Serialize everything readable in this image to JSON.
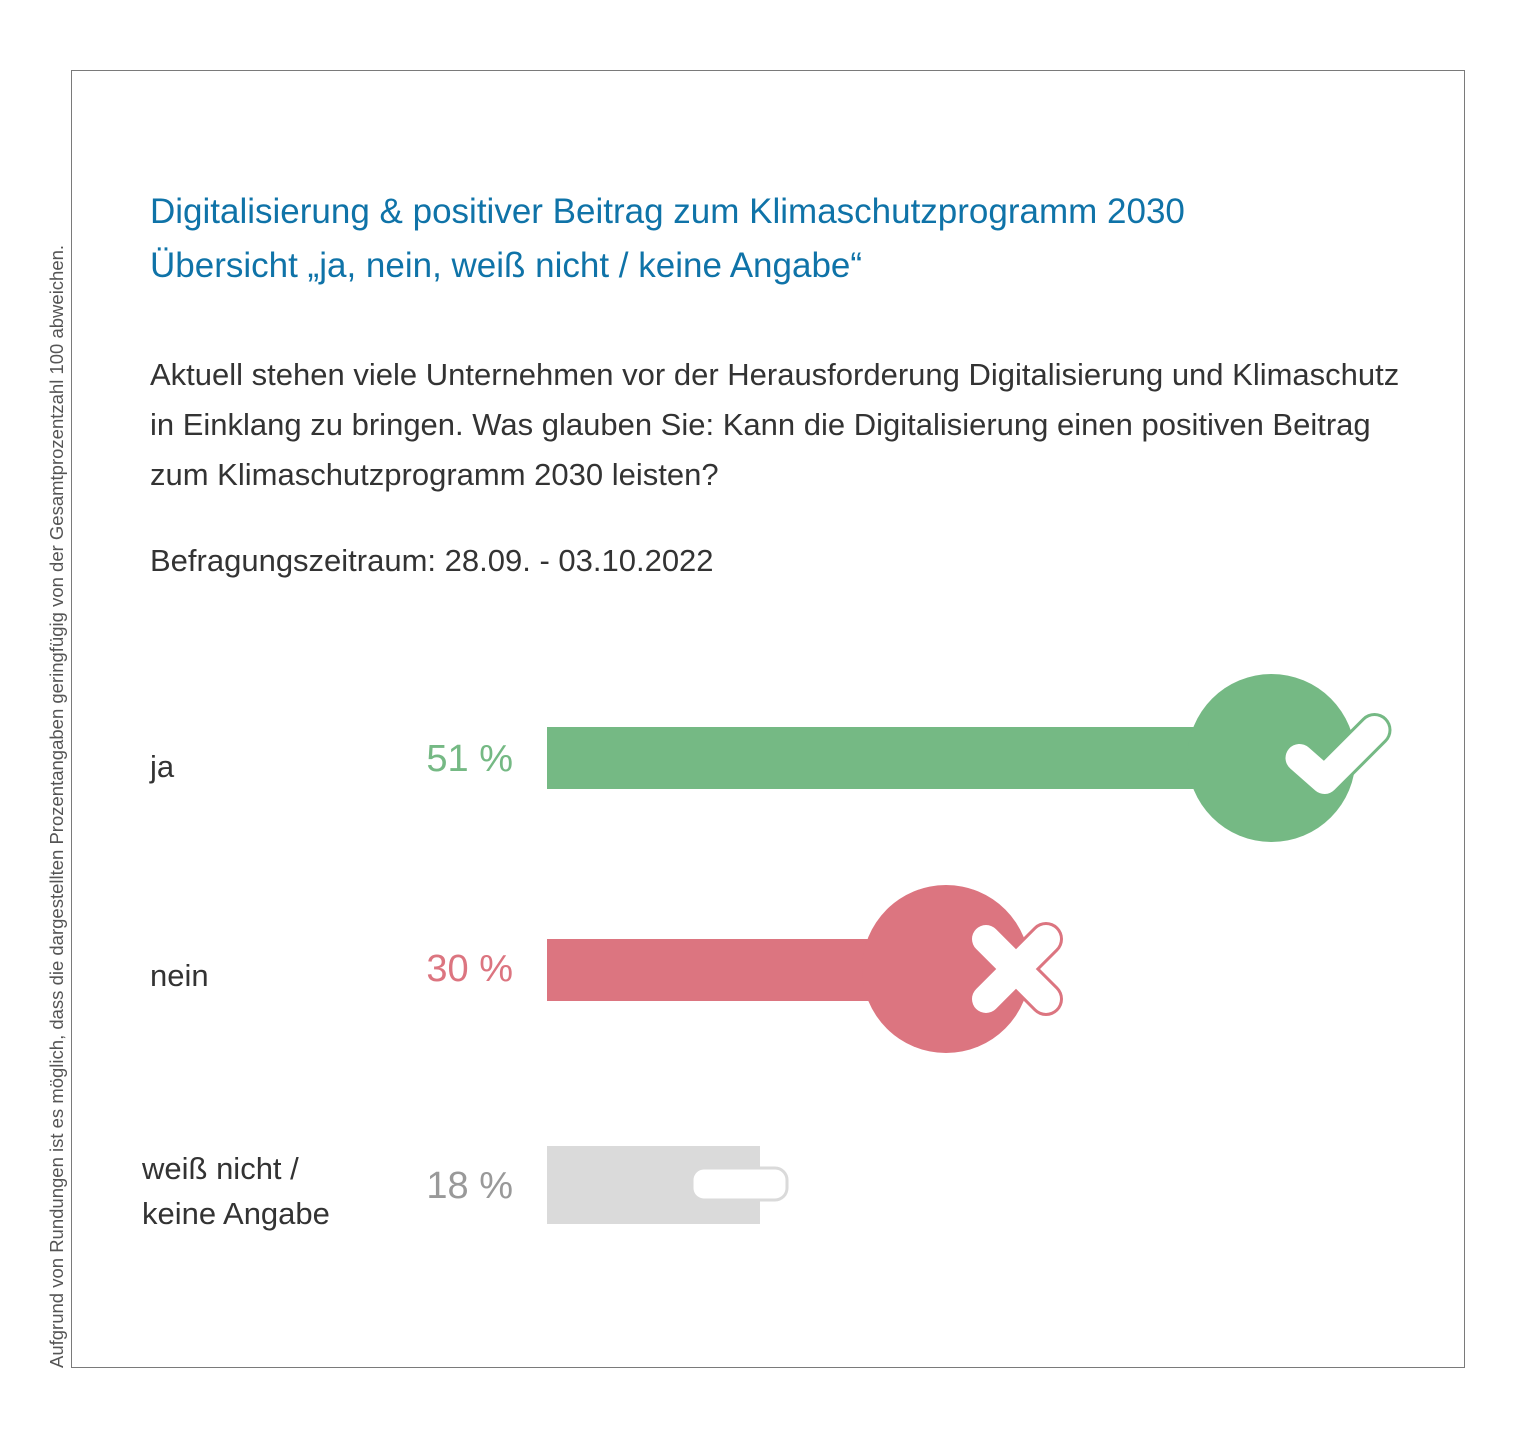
{
  "side_note": "Aufgrund von Rundungen ist es möglich, dass die dargestellten Prozentangaben geringfügig von der Gesamtprozentzahl 100 abweichen.",
  "title_line1": "Digitalisierung & positiver Beitrag zum Klimaschutzprogramm 2030",
  "title_line2": "Übersicht „ja, nein, weiß nicht / keine Angabe“",
  "question": "Aktuell stehen viele Unternehmen vor der Herausforderung Digitalisierung und Klimaschutz in Einklang zu bringen. Was glauben Sie: Kann die Digitalisierung einen positiven Beitrag zum Klimaschutzprogramm 2030 leisten?",
  "period": "Befragungszeitraum: 28.09. - 03.10.2022",
  "colors": {
    "title": "#0f73a8",
    "ja": "#75b984",
    "nein": "#dc7580",
    "unknown": "#dadada",
    "unknown_text": "#999999"
  },
  "chart_data": {
    "type": "bar",
    "orientation": "horizontal",
    "categories": [
      "ja",
      "nein",
      "weiß nicht / keine Angabe"
    ],
    "values": [
      51,
      30,
      18
    ],
    "value_labels": [
      "51 %",
      "30 %",
      "18 %"
    ],
    "icons": [
      "check-icon",
      "cross-icon",
      "dash-icon"
    ],
    "unit": "%"
  }
}
